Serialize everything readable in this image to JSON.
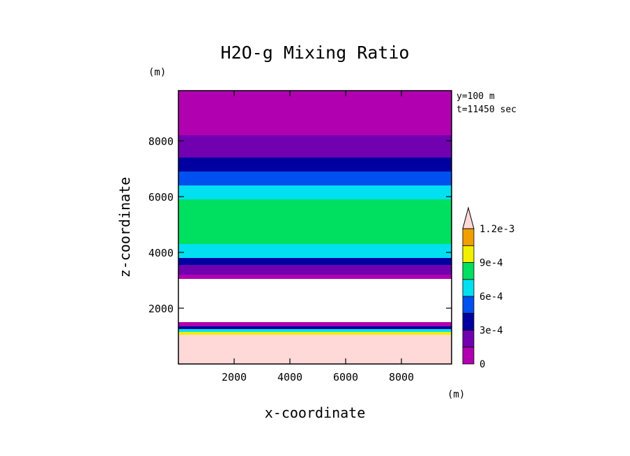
{
  "chart_data": {
    "type": "heatmap",
    "title": "H2O-g Mixing Ratio",
    "xlabel": "x-coordinate",
    "ylabel": "z-coordinate",
    "x_unit": "(m)",
    "y_unit": "(m)",
    "info_lines": [
      "y=100 m",
      "t=11450 sec"
    ],
    "xlim": [
      0,
      9800
    ],
    "ylim": [
      0,
      9800
    ],
    "xticks": [
      "2000",
      "4000",
      "6000",
      "8000"
    ],
    "yticks": [
      "2000",
      "4000",
      "6000",
      "8000"
    ],
    "xtick_values": [
      2000,
      4000,
      6000,
      8000
    ],
    "ytick_values": [
      2000,
      4000,
      6000,
      8000
    ],
    "colorbar": {
      "levels": [
        0,
        0.00015,
        0.0003,
        0.00045,
        0.0006,
        0.00075,
        0.0009,
        0.00105,
        0.0012
      ],
      "tick_labels": [
        "0",
        "3e-4",
        "6e-4",
        "9e-4",
        "1.2e-3"
      ],
      "tick_values": [
        0,
        0.0003,
        0.0006,
        0.0009,
        0.0012
      ],
      "colors": [
        "#b000b0",
        "#7000b0",
        "#0000a0",
        "#0050f0",
        "#00e0f0",
        "#00e060",
        "#f0f000",
        "#f0a000",
        "#f05000",
        "#f00000",
        "#ffd0d0"
      ],
      "overflow_color": "#ffd8d8"
    },
    "layers": [
      {
        "z": [
          9800,
          8900
        ],
        "value": 2e-05
      },
      {
        "z": [
          8900,
          8200
        ],
        "value": 8e-05
      },
      {
        "z": [
          8200,
          7400
        ],
        "value": 0.00022
      },
      {
        "z": [
          7400,
          6900
        ],
        "value": 0.00035
      },
      {
        "z": [
          6900,
          6400
        ],
        "value": 0.0005
      },
      {
        "z": [
          6400,
          5900
        ],
        "value": 0.00062
      },
      {
        "z": [
          5900,
          4900
        ],
        "value": 0.00078
      },
      {
        "z": [
          4900,
          4300
        ],
        "value": 0.00088
      },
      {
        "z": [
          4300,
          3800
        ],
        "value": 0.00068
      },
      {
        "z": [
          3800,
          3550
        ],
        "value": 0.00035
      },
      {
        "z": [
          3550,
          3200
        ],
        "value": 0.00015
      },
      {
        "z": [
          3200,
          3050
        ],
        "value": 4e-05
      },
      {
        "z": [
          3050,
          1500
        ],
        "value": null
      },
      {
        "z": [
          1500,
          1350
        ],
        "value": 5e-05
      },
      {
        "z": [
          1350,
          1250
        ],
        "value": 0.0003
      },
      {
        "z": [
          1250,
          1150
        ],
        "value": 0.0006
      },
      {
        "z": [
          1150,
          1050
        ],
        "value": 0.0009
      },
      {
        "z": [
          1050,
          0
        ],
        "value": 0.0013
      }
    ]
  }
}
